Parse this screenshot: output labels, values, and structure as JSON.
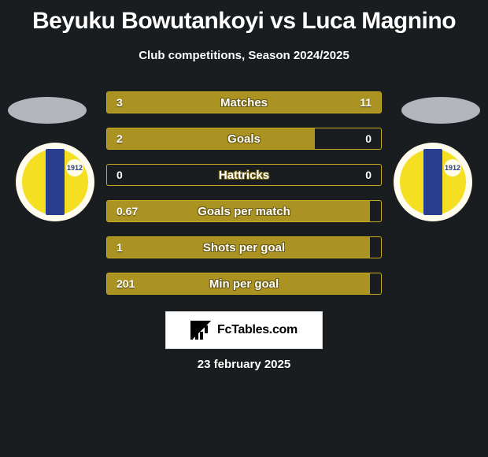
{
  "title": "Beyuku Bowutankoyi vs Luca Magnino",
  "subtitle": "Club competitions, Season 2024/2025",
  "date": "23 february 2025",
  "logo_text": "FcTables.com",
  "colors": {
    "background": "#1a1d1f",
    "bar_fill": "#aa9322",
    "bar_border": "#c9ab20",
    "text": "#ffffff",
    "badge_outer": "#fffced",
    "badge_inner": "#f4df23",
    "badge_band": "#2a3e8f"
  },
  "badge_year": "1912",
  "stats": [
    {
      "label": "Matches",
      "left_val": "3",
      "right_val": "11",
      "left_pct": 21,
      "right_pct": 79
    },
    {
      "label": "Goals",
      "left_val": "2",
      "right_val": "0",
      "left_pct": 76,
      "right_pct": 0
    },
    {
      "label": "Hattricks",
      "left_val": "0",
      "right_val": "0",
      "left_pct": 0,
      "right_pct": 0
    },
    {
      "label": "Goals per match",
      "left_val": "0.67",
      "right_val": "",
      "left_pct": 96,
      "right_pct": 0
    },
    {
      "label": "Shots per goal",
      "left_val": "1",
      "right_val": "",
      "left_pct": 96,
      "right_pct": 0
    },
    {
      "label": "Min per goal",
      "left_val": "201",
      "right_val": "",
      "left_pct": 96,
      "right_pct": 0
    }
  ]
}
